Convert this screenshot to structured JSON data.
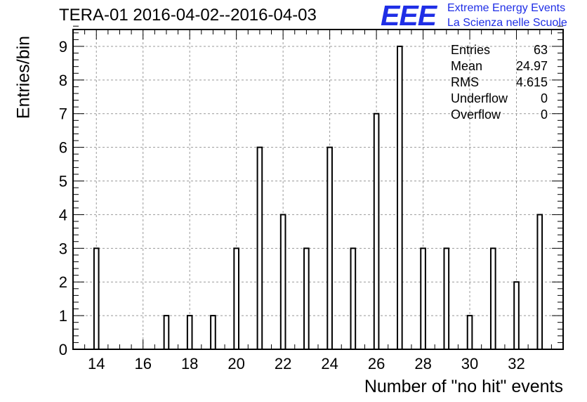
{
  "title": "TERA-01 2016-04-02--2016-04-03",
  "brand": {
    "logo": "EEE",
    "line1": "Extreme Energy Events",
    "line2": "La Scienza nelle Scuole"
  },
  "stats": {
    "entries_label": "Entries",
    "entries": "63",
    "mean_label": "Mean",
    "mean": "24.97",
    "rms_label": "RMS",
    "rms": "4.615",
    "underflow_label": "Underflow",
    "underflow": "0",
    "overflow_label": "Overflow",
    "overflow": "0"
  },
  "chart_data": {
    "type": "bar",
    "title": "TERA-01 2016-04-02--2016-04-03",
    "xlabel": "Number of \"no hit\" events",
    "ylabel": "Entries/bin",
    "xlim": [
      13,
      34
    ],
    "ylim": [
      0,
      9.5
    ],
    "grid": true,
    "x": [
      14,
      17,
      18,
      19,
      20,
      21,
      22,
      23,
      24,
      25,
      26,
      27,
      28,
      29,
      30,
      31,
      32,
      33
    ],
    "values": [
      3,
      1,
      1,
      1,
      3,
      6,
      4,
      3,
      6,
      3,
      7,
      9,
      3,
      3,
      1,
      3,
      2,
      4
    ],
    "xticks": [
      "14",
      "16",
      "18",
      "20",
      "22",
      "24",
      "26",
      "28",
      "30",
      "32"
    ],
    "yticks": [
      "0",
      "1",
      "2",
      "3",
      "4",
      "5",
      "6",
      "7",
      "8",
      "9"
    ]
  }
}
